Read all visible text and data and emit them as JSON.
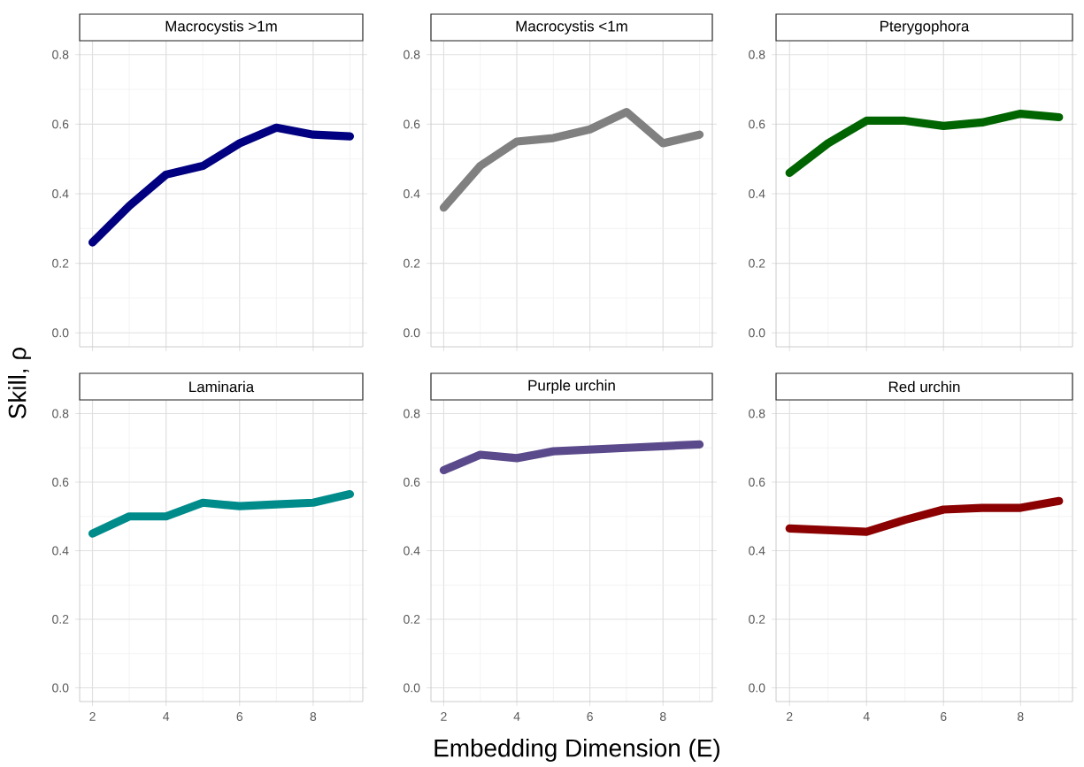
{
  "chart_data": [
    {
      "type": "line",
      "title": "Macrocystis >1m",
      "ylabel": "Skill, ρ",
      "x": [
        2,
        3,
        4,
        5,
        6,
        7,
        8,
        9
      ],
      "values": [
        0.26,
        0.365,
        0.455,
        0.48,
        0.545,
        0.59,
        0.57,
        0.565
      ],
      "color": "#000080",
      "xlim": [
        1.65,
        9.35
      ],
      "ylim": [
        -0.04,
        0.84
      ],
      "xticks": [
        2,
        4,
        6,
        8
      ],
      "yticks": [
        {
          "value": 0,
          "label": "0.0"
        },
        {
          "value": 0.2,
          "label": "0.2"
        },
        {
          "value": 0.4,
          "label": "0.4"
        },
        {
          "value": 0.6,
          "label": "0.6"
        },
        {
          "value": 0.8,
          "label": "0.8"
        }
      ],
      "grid": true,
      "tick_labels": "y"
    },
    {
      "type": "line",
      "title": "Macrocystis <1m",
      "x": [
        2,
        3,
        4,
        5,
        6,
        7,
        8,
        9
      ],
      "values": [
        0.36,
        0.48,
        0.55,
        0.56,
        0.585,
        0.635,
        0.545,
        0.57
      ],
      "color": "#808080",
      "xlim": [
        1.65,
        9.35
      ],
      "ylim": [
        -0.04,
        0.84
      ],
      "xticks": [
        2,
        4,
        6,
        8
      ],
      "yticks": [
        {
          "value": 0,
          "label": "0.0"
        },
        {
          "value": 0.2,
          "label": "0.2"
        },
        {
          "value": 0.4,
          "label": "0.4"
        },
        {
          "value": 0.6,
          "label": "0.6"
        },
        {
          "value": 0.8,
          "label": "0.8"
        }
      ],
      "grid": true,
      "tick_labels": "y"
    },
    {
      "type": "line",
      "title": "Pterygophora",
      "x": [
        2,
        3,
        4,
        5,
        6,
        7,
        8,
        9
      ],
      "values": [
        0.46,
        0.545,
        0.61,
        0.61,
        0.595,
        0.605,
        0.63,
        0.62
      ],
      "color": "#006400",
      "xlim": [
        1.65,
        9.35
      ],
      "ylim": [
        -0.04,
        0.84
      ],
      "xticks": [
        2,
        4,
        6,
        8
      ],
      "yticks": [
        {
          "value": 0,
          "label": "0.0"
        },
        {
          "value": 0.2,
          "label": "0.2"
        },
        {
          "value": 0.4,
          "label": "0.4"
        },
        {
          "value": 0.6,
          "label": "0.6"
        },
        {
          "value": 0.8,
          "label": "0.8"
        }
      ],
      "grid": true,
      "tick_labels": "y"
    },
    {
      "type": "line",
      "title": "Laminaria",
      "x": [
        2,
        3,
        4,
        5,
        6,
        7,
        8,
        9
      ],
      "values": [
        0.45,
        0.5,
        0.5,
        0.54,
        0.53,
        0.535,
        0.54,
        0.565
      ],
      "color": "#008B8B",
      "xlim": [
        1.65,
        9.35
      ],
      "ylim": [
        -0.04,
        0.84
      ],
      "xticks": [
        2,
        4,
        6,
        8
      ],
      "yticks": [
        {
          "value": 0,
          "label": "0.0"
        },
        {
          "value": 0.2,
          "label": "0.2"
        },
        {
          "value": 0.4,
          "label": "0.4"
        },
        {
          "value": 0.6,
          "label": "0.6"
        },
        {
          "value": 0.8,
          "label": "0.8"
        }
      ],
      "grid": true
    },
    {
      "type": "line",
      "title": "Purple urchin",
      "xlabel": "Embedding Dimension (E)",
      "x": [
        2,
        3,
        4,
        5,
        6,
        7,
        8,
        9
      ],
      "values": [
        0.635,
        0.68,
        0.67,
        0.69,
        0.695,
        0.7,
        0.705,
        0.71
      ],
      "color": "#5B4A8B",
      "xlim": [
        1.65,
        9.35
      ],
      "ylim": [
        -0.04,
        0.84
      ],
      "xticks": [
        2,
        4,
        6,
        8
      ],
      "yticks": [
        {
          "value": 0,
          "label": "0.0"
        },
        {
          "value": 0.2,
          "label": "0.2"
        },
        {
          "value": 0.4,
          "label": "0.4"
        },
        {
          "value": 0.6,
          "label": "0.6"
        },
        {
          "value": 0.8,
          "label": "0.8"
        }
      ],
      "grid": true
    },
    {
      "type": "line",
      "title": "Red urchin",
      "x": [
        2,
        3,
        4,
        5,
        6,
        7,
        8,
        9
      ],
      "values": [
        0.465,
        0.46,
        0.455,
        0.49,
        0.52,
        0.525,
        0.525,
        0.545
      ],
      "color": "#8B0000",
      "xlim": [
        1.65,
        9.35
      ],
      "ylim": [
        -0.04,
        0.84
      ],
      "xticks": [
        2,
        4,
        6,
        8
      ],
      "yticks": [
        {
          "value": 0,
          "label": "0.0"
        },
        {
          "value": 0.2,
          "label": "0.2"
        },
        {
          "value": 0.4,
          "label": "0.4"
        },
        {
          "value": 0.6,
          "label": "0.6"
        },
        {
          "value": 0.8,
          "label": "0.8"
        }
      ],
      "grid": true
    }
  ]
}
